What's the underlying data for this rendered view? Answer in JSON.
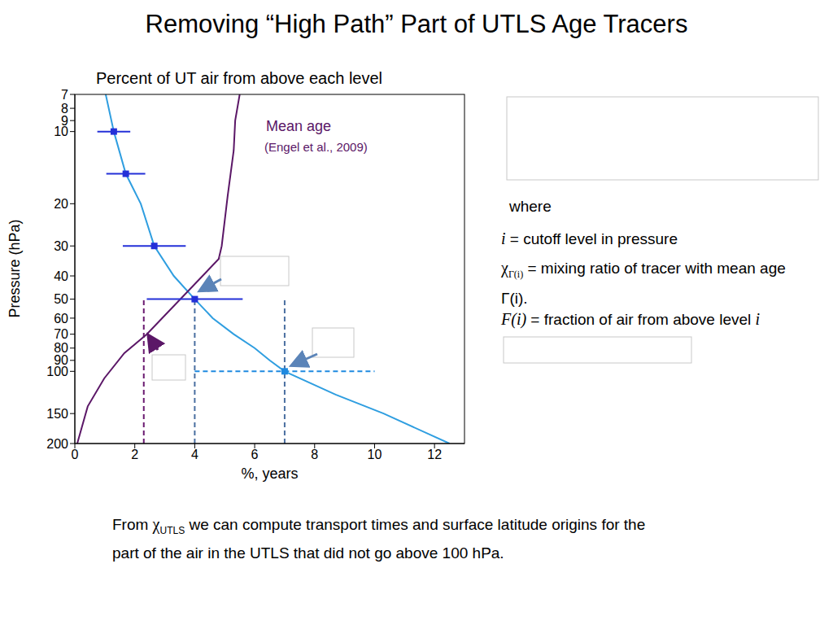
{
  "title": "Removing “High Path” Part of UTLS Age Tracers",
  "chart_data": {
    "type": "line",
    "title": "Percent of UT air from above each level",
    "x_label": "%, years",
    "y_label": "Pressure (hPa)",
    "xlim": [
      0,
      13
    ],
    "xticks": [
      0,
      2,
      4,
      6,
      8,
      10,
      12
    ],
    "ylim": [
      200,
      7
    ],
    "yticks": [
      7,
      8,
      9,
      10,
      20,
      30,
      40,
      50,
      60,
      70,
      80,
      90,
      100,
      150,
      200
    ],
    "log": "y",
    "series": [
      {
        "type": "line",
        "color": "#2f9ee0",
        "x": [
          1.03,
          1.3,
          1.7,
          2.2,
          2.65,
          3.3,
          4,
          4.6,
          5.3,
          6,
          6.5,
          7,
          8.7,
          10.3,
          12.5
        ],
        "y": [
          7,
          10,
          15,
          20,
          30,
          40,
          50,
          60,
          70,
          80,
          90,
          100,
          125,
          150,
          200
        ]
      },
      {
        "type": "line",
        "name": "Mean age",
        "color": "#5b1767",
        "x": [
          5.5,
          5.35,
          5.3,
          5.1,
          4.9,
          4.8,
          2.4,
          1.65,
          0.98,
          0.43,
          0.08
        ],
        "y": [
          7,
          9,
          12,
          18.5,
          30,
          34,
          70,
          84,
          107,
          140,
          200
        ]
      },
      {
        "type": "scatter",
        "marker": "square",
        "color": "#2430d8",
        "x": [
          1.3,
          1.7,
          2.65,
          4
        ],
        "y": [
          10,
          15,
          30,
          50
        ],
        "xerr": [
          0.55,
          0.65,
          1.05,
          1.6
        ]
      },
      {
        "type": "scatter",
        "marker": "square",
        "color": "#1f8ae0",
        "line_style": "dashed",
        "x": [
          7
        ],
        "y": [
          100
        ],
        "xerr": [
          3
        ]
      }
    ],
    "reference_lines": [
      {
        "x": 2.3,
        "y": [
          200,
          50
        ],
        "color": "#6a1a70",
        "line_style": "dashed"
      },
      {
        "x": 4,
        "y": [
          200,
          50
        ],
        "color": "#4a6fa0",
        "line_style": "dashed"
      },
      {
        "x": 7,
        "y": [
          200,
          50
        ],
        "color": "#4a6fa0",
        "line_style": "dashed"
      }
    ],
    "annotations": [
      "(Engel et al., 2009)"
    ]
  },
  "side_text": {
    "where": "where",
    "definitions": [
      {
        "symbol": "i",
        "text": " = cutoff level in pressure"
      },
      {
        "symbol": "χ",
        "subscript": "Γ(i)",
        "text": " = mixing ratio of tracer with mean age Γ(i)."
      },
      {
        "symbol": "F(i)",
        "text": " = fraction of air from above level ",
        "tail": "i"
      }
    ]
  },
  "footer": {
    "before": "From ",
    "symbol": "χ",
    "subscript": "UTLS",
    "lines": [
      "we can compute transport times and surface latitude origins for the",
      "part of the air in the UTLS that did not go above 100 hPa."
    ]
  }
}
